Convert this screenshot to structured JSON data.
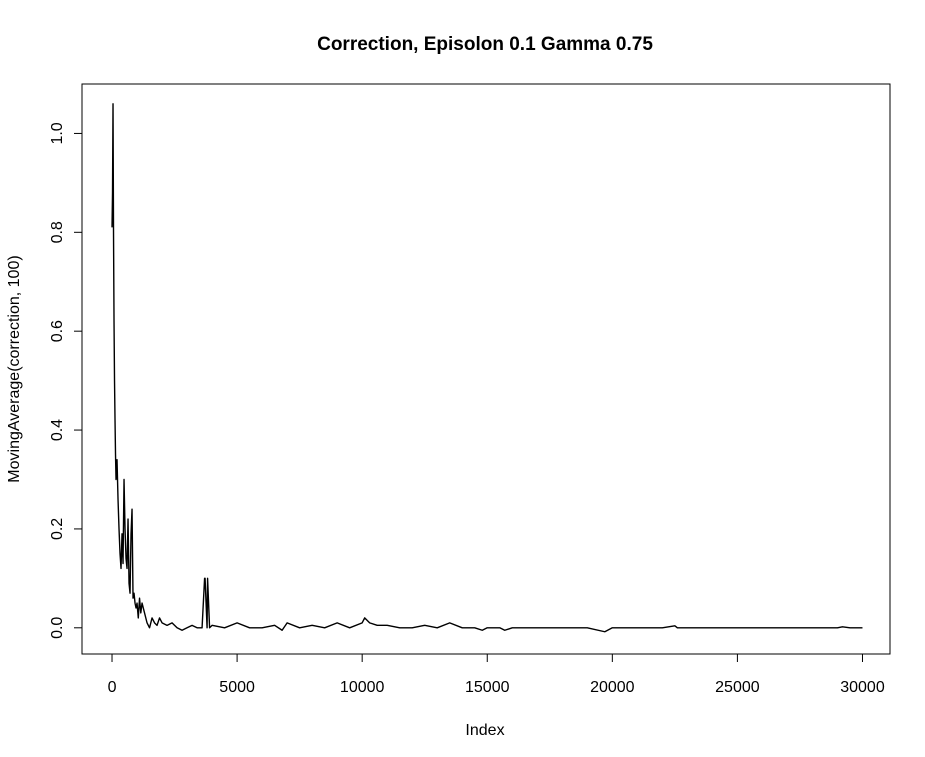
{
  "chart_data": {
    "type": "line",
    "title": "Correction, Episolon  0.1  Gamma  0.75",
    "xlabel": "Index",
    "ylabel": "MovingAverage(correction, 100)",
    "xlim": [
      -1200,
      31100
    ],
    "ylim": [
      -0.053,
      1.1
    ],
    "x_ticks": [
      0,
      5000,
      10000,
      15000,
      20000,
      25000,
      30000
    ],
    "x_tick_labels": [
      "0",
      "5000",
      "10000",
      "15000",
      "20000",
      "25000",
      "30000"
    ],
    "y_ticks": [
      0.0,
      0.2,
      0.4,
      0.6,
      0.8,
      1.0
    ],
    "y_tick_labels": [
      "0.0",
      "0.2",
      "0.4",
      "0.6",
      "0.8",
      "1.0"
    ],
    "grid": false,
    "line_color": "#000000",
    "series": [
      {
        "x": [
          0,
          20,
          40,
          60,
          80,
          100,
          120,
          140,
          160,
          200,
          240,
          280,
          320,
          360,
          400,
          440,
          480,
          520,
          560,
          600,
          640,
          680,
          720,
          760,
          800,
          840,
          880,
          920,
          960,
          1000,
          1050,
          1100,
          1150,
          1200,
          1300,
          1400,
          1500,
          1600,
          1700,
          1800,
          1900,
          2000,
          2200,
          2400,
          2600,
          2800,
          3000,
          3200,
          3400,
          3600,
          3700,
          3720,
          3800,
          3820,
          3900,
          4000,
          4500,
          5000,
          5500,
          6000,
          6500,
          6800,
          7000,
          7500,
          8000,
          8500,
          9000,
          9500,
          10000,
          10100,
          10300,
          10600,
          11000,
          11500,
          12000,
          12500,
          13000,
          13500,
          14000,
          14500,
          14800,
          15000,
          15500,
          15700,
          16000,
          17000,
          18000,
          19000,
          19700,
          20000,
          21000,
          22000,
          22500,
          22600,
          23000,
          24000,
          25000,
          26000,
          27000,
          28000,
          29000,
          29200,
          29500,
          30000
        ],
        "y": [
          0.81,
          0.88,
          1.06,
          0.8,
          0.62,
          0.5,
          0.42,
          0.35,
          0.3,
          0.34,
          0.26,
          0.2,
          0.15,
          0.12,
          0.19,
          0.13,
          0.3,
          0.2,
          0.14,
          0.12,
          0.22,
          0.09,
          0.07,
          0.19,
          0.24,
          0.06,
          0.07,
          0.05,
          0.04,
          0.05,
          0.02,
          0.06,
          0.03,
          0.05,
          0.03,
          0.01,
          0.0,
          0.02,
          0.01,
          0.005,
          0.02,
          0.01,
          0.005,
          0.01,
          0.0,
          -0.005,
          0.0,
          0.005,
          0.0,
          0.0,
          0.1,
          0.1,
          0.0,
          0.1,
          0.0,
          0.005,
          0.0,
          0.01,
          0.0,
          0.0,
          0.005,
          -0.005,
          0.01,
          0.0,
          0.005,
          0.0,
          0.01,
          0.0,
          0.01,
          0.02,
          0.01,
          0.005,
          0.005,
          0.0,
          0.0,
          0.005,
          0.0,
          0.01,
          0.0,
          0.0,
          -0.005,
          0.0,
          0.0,
          -0.005,
          0.0,
          0.0,
          0.0,
          0.0,
          -0.008,
          0.0,
          0.0,
          0.0,
          0.004,
          0.0,
          0.0,
          0.0,
          0.0,
          0.0,
          0.0,
          0.0,
          0.0,
          0.002,
          0.0,
          0.0
        ]
      }
    ]
  }
}
